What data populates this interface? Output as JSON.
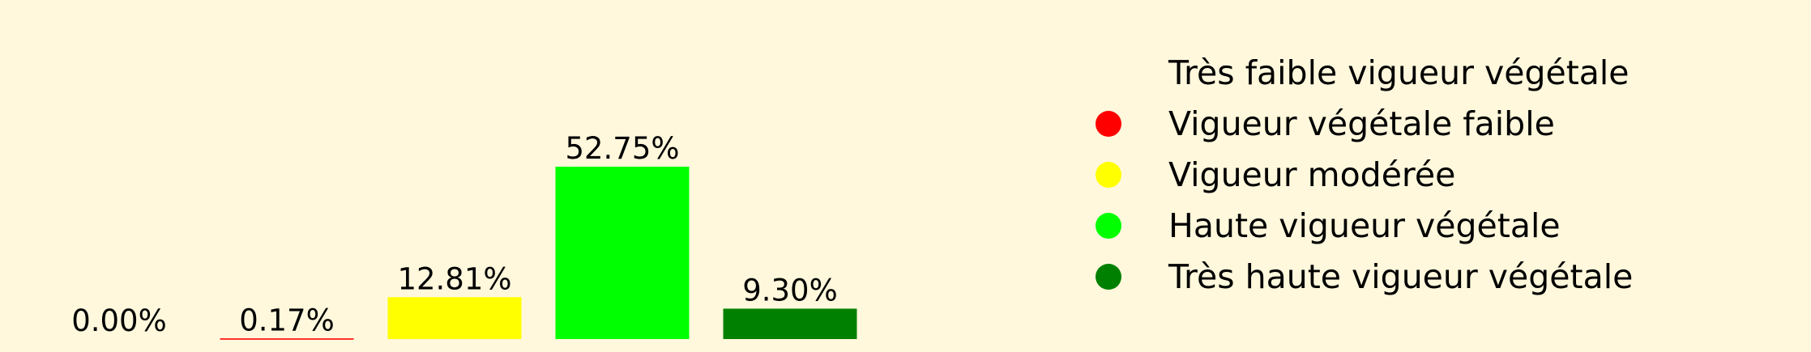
{
  "chart_data": {
    "type": "bar",
    "categories": [
      "Très faible vigueur végétale",
      "Vigueur végétale faible",
      "Vigueur modérée",
      "Haute vigueur végétale",
      "Très haute vigueur végétale"
    ],
    "values": [
      0.0,
      0.17,
      12.81,
      52.75,
      9.3
    ],
    "data_labels": [
      "0.00%",
      "0.17%",
      "12.81%",
      "52.75%",
      "9.30%"
    ],
    "colors": [
      "#fff8dc",
      "#ff0000",
      "#ffff00",
      "#00ff00",
      "#008000"
    ],
    "ylim": [
      0,
      52.75
    ],
    "grid": false,
    "legend_position": "right"
  },
  "legend": {
    "items": [
      {
        "label": "Très faible vigueur végétale",
        "color": ""
      },
      {
        "label": "Vigueur végétale faible",
        "color": "#ff0000"
      },
      {
        "label": "Vigueur modérée",
        "color": "#ffff00"
      },
      {
        "label": "Haute vigueur végétale",
        "color": "#00ff00"
      },
      {
        "label": "Très haute vigueur végétale",
        "color": "#008000"
      }
    ]
  }
}
